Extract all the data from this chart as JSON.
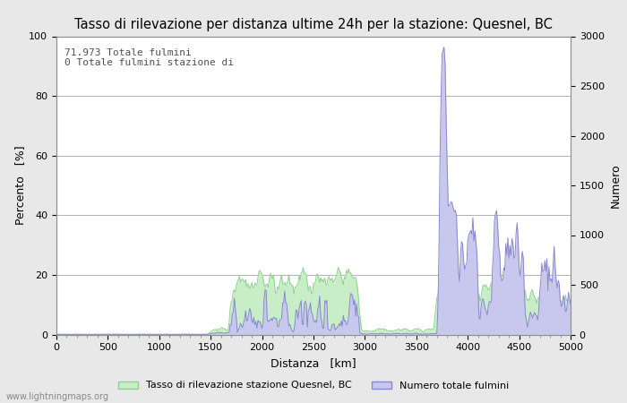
{
  "title": "Tasso di rilevazione per distanza ultime 24h per la stazione: Quesnel, BC",
  "xlabel": "Distanza   [km]",
  "ylabel_left": "Percento   [%]",
  "ylabel_right": "Numero",
  "annotation_line1": "71.973 Totale fulmini",
  "annotation_line2": "0 Totale fulmini stazione di",
  "legend_green": "Tasso di rilevazione stazione Quesnel, BC",
  "legend_blue": "Numero totale fulmini",
  "watermark": "www.lightningmaps.org",
  "xlim": [
    0,
    5000
  ],
  "ylim_left": [
    0,
    100
  ],
  "ylim_right": [
    0,
    3000
  ],
  "xticks": [
    0,
    500,
    1000,
    1500,
    2000,
    2500,
    3000,
    3500,
    4000,
    4500,
    5000
  ],
  "yticks_left": [
    0,
    20,
    40,
    60,
    80,
    100
  ],
  "yticks_right": [
    0,
    500,
    1000,
    1500,
    2000,
    2500,
    3000
  ],
  "bg_color": "#e8e8e8",
  "plot_bg_color": "#ffffff",
  "grid_color": "#b0b0b0",
  "fill_green_color": "#c8eec8",
  "fill_green_edge": "#90d090",
  "fill_blue_color": "#c8c8ee",
  "fill_blue_edge": "#8888cc",
  "title_fontsize": 10.5,
  "label_fontsize": 9,
  "tick_fontsize": 8,
  "annotation_fontsize": 8
}
